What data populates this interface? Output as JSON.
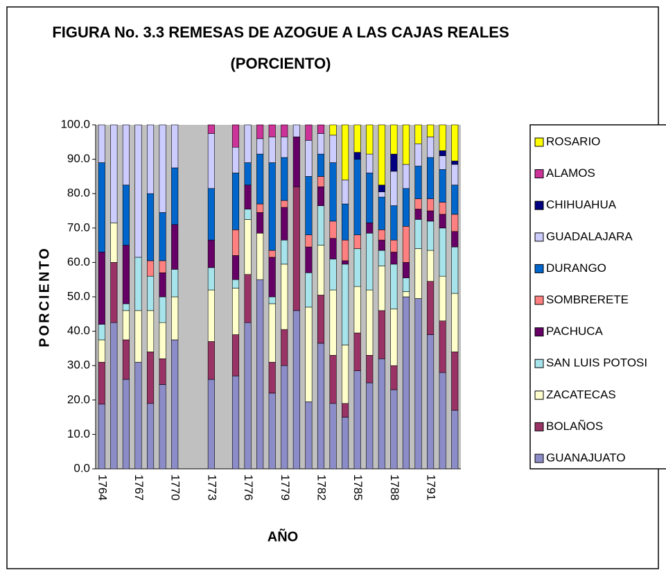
{
  "chart_data": {
    "type": "stacked_bar",
    "title": [
      "FIGURA No. 3.3 REMESAS DE AZOGUE A LAS CAJAS REALES",
      "(PORCIENTO)"
    ],
    "y_label": "PORCIENTO",
    "x_label": "AÑO",
    "categories": [
      "1764",
      null,
      null,
      "1767",
      null,
      null,
      "1770",
      null,
      null,
      "1773",
      null,
      null,
      "1776",
      null,
      null,
      "1779",
      null,
      null,
      "1782",
      null,
      null,
      "1785",
      null,
      null,
      "1788",
      null,
      null,
      "1791",
      null,
      null
    ],
    "ylim": [
      0,
      100
    ],
    "yticks": [
      {
        "value": 0,
        "label": "0.0"
      },
      {
        "value": 10,
        "label": "10.0"
      },
      {
        "value": 20,
        "label": "20.0"
      },
      {
        "value": 30,
        "label": "30.0"
      },
      {
        "value": 40,
        "label": "40.0"
      },
      {
        "value": 50,
        "label": "50.0"
      },
      {
        "value": 60,
        "label": "60.0"
      },
      {
        "value": 70,
        "label": "70.0"
      },
      {
        "value": 80,
        "label": "80.0"
      },
      {
        "value": 90,
        "label": "90.0"
      },
      {
        "value": 100,
        "label": "100.0"
      }
    ],
    "grid": false,
    "legend": "right",
    "series": [
      {
        "name": "GUANAJUATO",
        "color": "#8c8cc8",
        "values": [
          18.8,
          42.5,
          26,
          31,
          19,
          24.5,
          37.5,
          null,
          null,
          26,
          null,
          27,
          42.5,
          55,
          22,
          30,
          46,
          19.5,
          36.5,
          19,
          15,
          28.5,
          25,
          32,
          23,
          50,
          49.5,
          39,
          28,
          17
        ]
      },
      {
        "name": "BOLAÑOS",
        "color": "#993366",
        "values": [
          12.2,
          17.5,
          11.5,
          0,
          15,
          7.5,
          0,
          null,
          null,
          11,
          null,
          12,
          14,
          0,
          9,
          10.5,
          36,
          0,
          14,
          14,
          4,
          11,
          8,
          14,
          7,
          0,
          0,
          15.5,
          15,
          17
        ]
      },
      {
        "name": "ZACATECAS",
        "color": "#ffffcc",
        "values": [
          6.5,
          11.5,
          8.5,
          15,
          12,
          10.5,
          12.5,
          null,
          null,
          15,
          null,
          13.5,
          16,
          13.5,
          17,
          19,
          0,
          27.5,
          14.5,
          19,
          17,
          13.5,
          19,
          13,
          16.5,
          1.5,
          14.5,
          9,
          13,
          17
        ]
      },
      {
        "name": "SAN LUIS POTOSI",
        "color": "#a6e3ea",
        "values": [
          4.5,
          0,
          2,
          15.5,
          10,
          7.5,
          8,
          null,
          null,
          6.5,
          null,
          2.5,
          3,
          0,
          2,
          7,
          0,
          10,
          11.5,
          9,
          23.5,
          11,
          16.5,
          4.5,
          13,
          4,
          8.5,
          8.5,
          14,
          13.5
        ]
      },
      {
        "name": "PACHUCA",
        "color": "#660066",
        "values": [
          21,
          0,
          17,
          0,
          0,
          7,
          13,
          null,
          null,
          8,
          null,
          7,
          7,
          6,
          11.5,
          9.5,
          14.5,
          7.5,
          5.5,
          6,
          1,
          0,
          3,
          3,
          3.5,
          4.5,
          3,
          3,
          4,
          4.5
        ]
      },
      {
        "name": "SOMBRERETE",
        "color": "#ff8080",
        "values": [
          0,
          0,
          0,
          0,
          4.5,
          3.5,
          0,
          null,
          null,
          0,
          null,
          7.5,
          0,
          2.5,
          2,
          2,
          0,
          3.5,
          3,
          5,
          6,
          4,
          0,
          3,
          3.5,
          10.5,
          3,
          3.5,
          3.5,
          5
        ]
      },
      {
        "name": "DURANGO",
        "color": "#0066cc",
        "values": [
          26,
          0,
          17.5,
          0,
          19.5,
          14,
          16.5,
          null,
          null,
          15,
          null,
          16.5,
          6.5,
          14.5,
          25.5,
          12.5,
          0,
          17,
          6.5,
          17,
          10.5,
          22,
          14.5,
          9.5,
          10,
          11,
          9.5,
          12,
          9.5,
          8.5
        ]
      },
      {
        "name": "GUADALAJARA",
        "color": "#ccccff",
        "values": [
          11,
          28.5,
          17.5,
          38.5,
          20,
          25.5,
          12.5,
          null,
          null,
          16,
          null,
          7.5,
          11,
          4.5,
          7.5,
          6,
          3.5,
          10.5,
          6,
          8,
          7,
          0,
          5.5,
          1.5,
          10,
          7,
          6.5,
          6,
          4,
          6
        ]
      },
      {
        "name": "CHIHUAHUA",
        "color": "#000080",
        "values": [
          0,
          0,
          0,
          0,
          0,
          0,
          0,
          null,
          null,
          0,
          null,
          0,
          0,
          0,
          0,
          0,
          0,
          0,
          0,
          0,
          0,
          2,
          0,
          2,
          5,
          0,
          0,
          0,
          1.5,
          1
        ]
      },
      {
        "name": "ALAMOS",
        "color": "#cc3399",
        "values": [
          0,
          0,
          0,
          0,
          0,
          0,
          0,
          null,
          null,
          2.5,
          null,
          6.5,
          0,
          4,
          3.5,
          3.5,
          0,
          4.5,
          2.5,
          0,
          0,
          0,
          0,
          0,
          0,
          0,
          0,
          0,
          0,
          0
        ]
      },
      {
        "name": "ROSARIO",
        "color": "#ffff00",
        "values": [
          0,
          0,
          0,
          0,
          0,
          0,
          0,
          null,
          null,
          0,
          null,
          0,
          0,
          0,
          0,
          0,
          0,
          0,
          0,
          3,
          16,
          8,
          8.5,
          17.5,
          8.5,
          11.5,
          5.5,
          3.5,
          7.5,
          10.5
        ]
      }
    ]
  }
}
